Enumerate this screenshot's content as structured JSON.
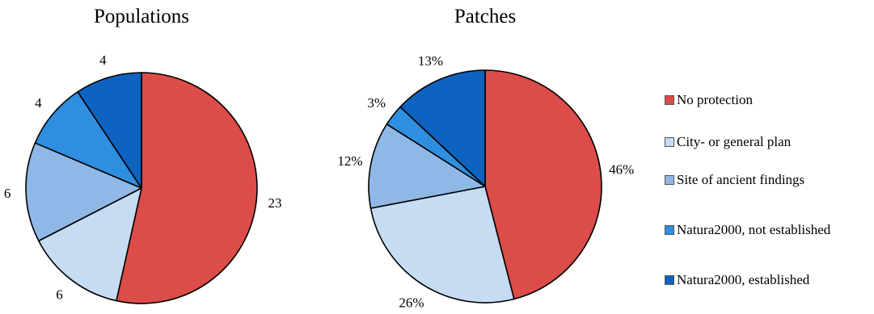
{
  "chart_data": [
    {
      "type": "pie",
      "title": "Populations",
      "categories": [
        "No protection",
        "City- or general plan",
        "Site of ancient findings",
        "Natura2000, not established",
        "Natura2000, established"
      ],
      "values": [
        23,
        6,
        6,
        4,
        4
      ],
      "data_labels": [
        "23",
        "6",
        "6",
        "4",
        "4"
      ],
      "start_angle_deg": 0,
      "direction": "clockwise"
    },
    {
      "type": "pie",
      "title": "Patches",
      "categories": [
        "No protection",
        "City- or general plan",
        "Site of ancient findings",
        "Natura2000, not established",
        "Natura2000, established"
      ],
      "values": [
        46,
        26,
        12,
        3,
        13
      ],
      "data_labels": [
        "46%",
        "26%",
        "12%",
        "3%",
        "13%"
      ],
      "start_angle_deg": 0,
      "direction": "clockwise"
    }
  ],
  "legend": {
    "placement": "right",
    "items": [
      {
        "label": "No protection",
        "color": "#dc4c48"
      },
      {
        "label": "City- or general plan",
        "color": "#c6dcf2"
      },
      {
        "label": "Site of ancient findings",
        "color": "#8fb8e6"
      },
      {
        "label": "Natura2000, not established",
        "color": "#2e8ee0"
      },
      {
        "label": "Natura2000, established",
        "color": "#0f63c0"
      }
    ]
  },
  "colors": {
    "slice_border": "#000000"
  }
}
